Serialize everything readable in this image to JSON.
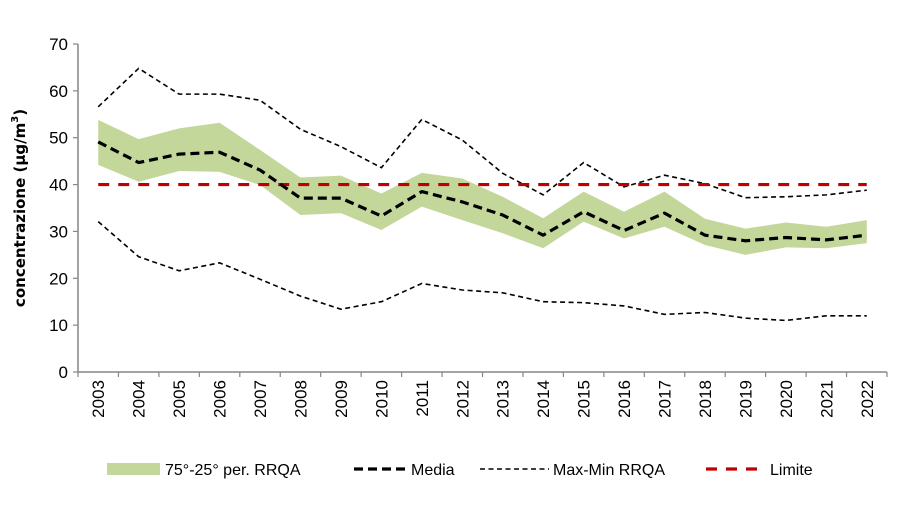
{
  "chart_data": {
    "type": "line",
    "title": "",
    "xlabel": "",
    "ylabel": "concentrazione (µg/m³)",
    "ylabel_parts": {
      "base": "concentrazione (µg/m",
      "sup": "3",
      "end": ")"
    },
    "ylim": [
      0,
      70
    ],
    "yticks": [
      0,
      10,
      20,
      30,
      40,
      50,
      60,
      70
    ],
    "grid": false,
    "legend_position": "bottom",
    "categories": [
      "2003",
      "2004",
      "2005",
      "2006",
      "2007",
      "2008",
      "2009",
      "2010",
      "2011",
      "2012",
      "2013",
      "2014",
      "2015",
      "2016",
      "2017",
      "2018",
      "2019",
      "2020",
      "2021",
      "2022"
    ],
    "band": {
      "name": "75°-25° per. RRQA",
      "color": "#c4d79b",
      "upper": [
        53.8,
        49.7,
        52.0,
        53.2,
        47.4,
        41.5,
        41.9,
        38.1,
        42.5,
        41.3,
        37.4,
        32.8,
        38.5,
        34.2,
        38.5,
        32.7,
        30.6,
        31.9,
        31.0,
        32.4
      ],
      "lower": [
        44.2,
        40.6,
        42.9,
        42.7,
        39.9,
        33.5,
        33.9,
        30.3,
        35.3,
        32.4,
        29.6,
        26.4,
        32.1,
        28.5,
        31.0,
        27.1,
        25.0,
        26.6,
        26.4,
        27.5
      ]
    },
    "series": [
      {
        "name": "Media",
        "color": "#000000",
        "style": "thick-dash",
        "values": [
          49.1,
          44.7,
          46.5,
          46.9,
          43.1,
          37.1,
          37.1,
          33.3,
          38.5,
          36.3,
          33.5,
          29.2,
          34.2,
          30.2,
          33.9,
          29.2,
          28.0,
          28.7,
          28.2,
          29.2
        ]
      },
      {
        "name": "Max RRQA",
        "color": "#000000",
        "style": "thin-dash",
        "values": [
          56.6,
          64.8,
          59.3,
          59.3,
          58.0,
          51.8,
          48.1,
          43.6,
          53.9,
          49.5,
          42.4,
          37.8,
          44.7,
          39.5,
          42.0,
          40.2,
          37.2,
          37.4,
          37.8,
          38.8
        ]
      },
      {
        "name": "Min RRQA",
        "color": "#000000",
        "style": "thin-dash",
        "values": [
          32.1,
          24.6,
          21.6,
          23.3,
          19.8,
          16.2,
          13.4,
          15.0,
          18.9,
          17.5,
          16.9,
          15.0,
          14.8,
          14.1,
          12.3,
          12.7,
          11.5,
          11.0,
          12.0,
          12.0
        ]
      },
      {
        "name": "Limite",
        "color": "#c00000",
        "style": "red-dash",
        "values": [
          40,
          40,
          40,
          40,
          40,
          40,
          40,
          40,
          40,
          40,
          40,
          40,
          40,
          40,
          40,
          40,
          40,
          40,
          40,
          40
        ]
      }
    ],
    "legend": [
      {
        "label": "75°-25° per. RRQA",
        "kind": "band",
        "color": "#c4d79b"
      },
      {
        "label": "Media",
        "kind": "thick-dash",
        "color": "#000000"
      },
      {
        "label": "Max-Min RRQA",
        "kind": "thin-dash",
        "color": "#000000"
      },
      {
        "label": "Limite",
        "kind": "red-dash",
        "color": "#c00000"
      }
    ]
  }
}
